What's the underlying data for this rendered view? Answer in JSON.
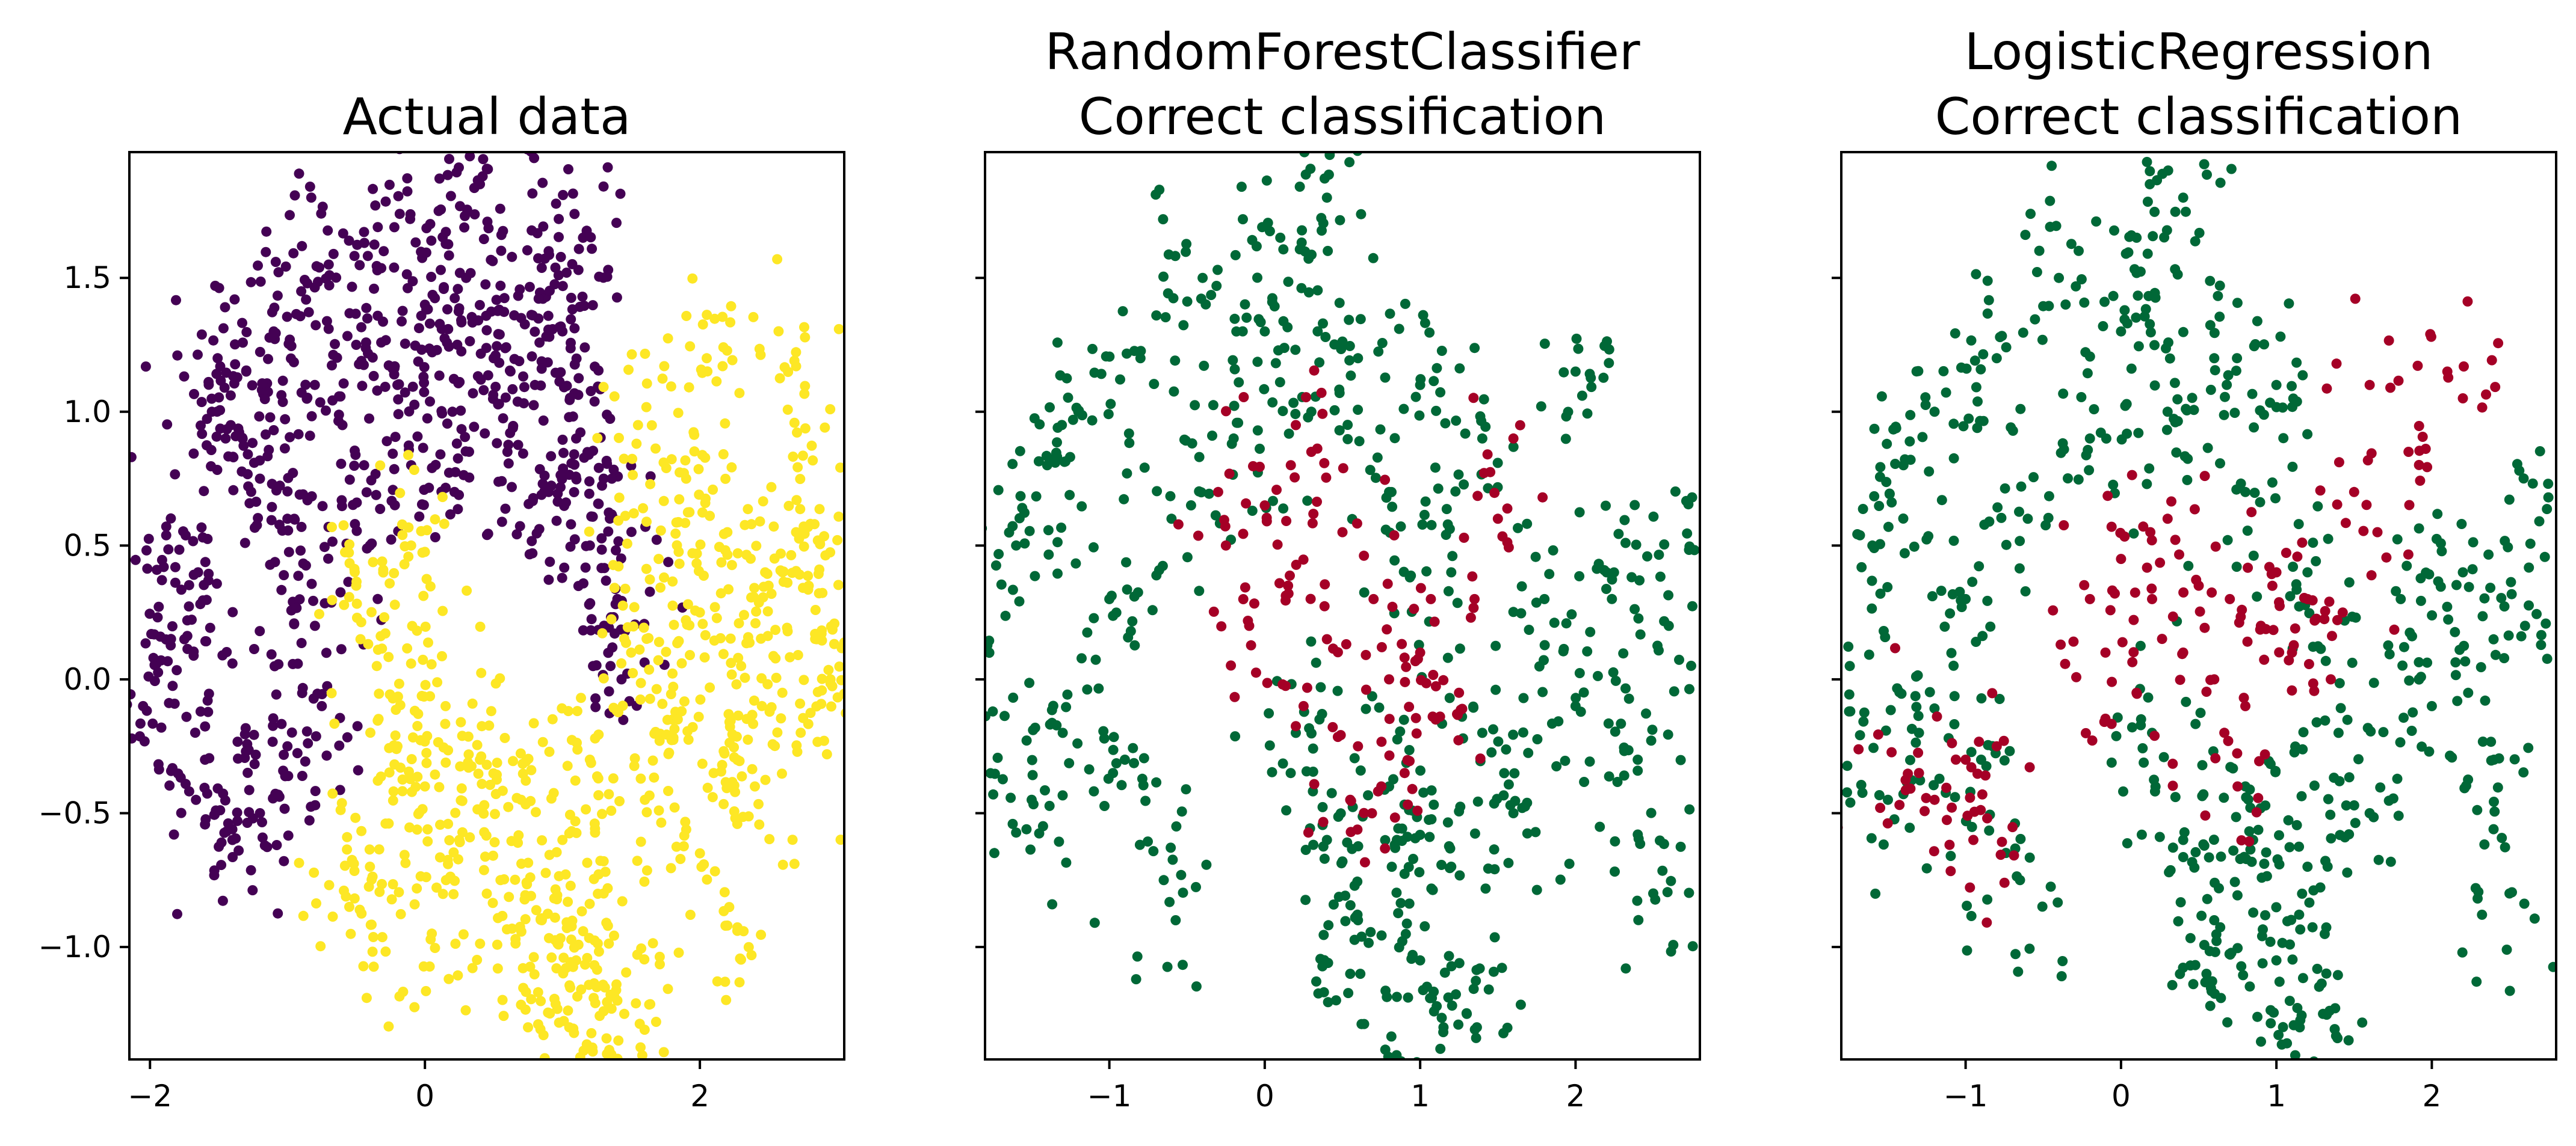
{
  "chart_data": [
    {
      "type": "scatter",
      "title": "Actual data",
      "xlabel": "",
      "ylabel": "",
      "xlim": [
        -2.15,
        3.05
      ],
      "ylim": [
        -1.42,
        1.97
      ],
      "x_ticks": [
        -2,
        0,
        2
      ],
      "x_tick_labels": [
        "−2",
        "0",
        "2"
      ],
      "y_ticks": [
        -1.0,
        -0.5,
        0.0,
        0.5,
        1.0,
        1.5
      ],
      "y_tick_labels": [
        "−1.0",
        "−0.5",
        "0.0",
        "0.5",
        "1.0",
        "1.5"
      ],
      "grid": false,
      "series": [
        {
          "color": "#440154",
          "distribution": "upper moon",
          "points": [
            [
              -1.55,
              1.0
            ],
            [
              -1.45,
              0.9
            ],
            [
              -1.3,
              1.15
            ],
            [
              -1.2,
              0.75
            ],
            [
              -1.1,
              1.3
            ],
            [
              -1.0,
              0.6
            ],
            [
              -0.9,
              1.45
            ],
            [
              -0.8,
              0.2
            ],
            [
              -0.7,
              1.55
            ],
            [
              -0.6,
              0.95
            ],
            [
              -0.5,
              1.25
            ],
            [
              -0.4,
              0.5
            ],
            [
              -0.3,
              1.6
            ],
            [
              -0.2,
              1.1
            ],
            [
              -0.1,
              0.8
            ],
            [
              0.0,
              1.4
            ],
            [
              0.1,
              1.75
            ],
            [
              0.2,
              1.0
            ],
            [
              0.3,
              1.5
            ],
            [
              0.4,
              1.85
            ],
            [
              0.5,
              1.2
            ],
            [
              0.6,
              0.85
            ],
            [
              0.7,
              1.35
            ],
            [
              0.8,
              1.1
            ],
            [
              0.9,
              0.7
            ],
            [
              1.0,
              1.3
            ],
            [
              1.1,
              0.9
            ],
            [
              1.2,
              0.5
            ],
            [
              1.3,
              0.75
            ],
            [
              1.4,
              0.3
            ],
            [
              -1.65,
              0.4
            ],
            [
              -1.75,
              0.15
            ],
            [
              -2.05,
              -0.1
            ],
            [
              -1.9,
              0.42
            ],
            [
              -1.6,
              -0.3
            ],
            [
              -1.4,
              -0.6
            ],
            [
              -1.2,
              -0.5
            ],
            [
              -1.0,
              -0.25
            ],
            [
              -0.75,
              -0.1
            ],
            [
              1.15,
              1.65
            ],
            [
              0.9,
              1.6
            ],
            [
              1.35,
              0.05
            ]
          ]
        },
        {
          "color": "#FDE725",
          "distribution": "lower moon",
          "points": [
            [
              -0.5,
              0.35
            ],
            [
              -0.35,
              0.05
            ],
            [
              -0.2,
              -0.25
            ],
            [
              -0.1,
              0.5
            ],
            [
              0.0,
              -0.4
            ],
            [
              0.15,
              -0.1
            ],
            [
              0.25,
              -0.6
            ],
            [
              0.4,
              -0.3
            ],
            [
              0.55,
              -0.75
            ],
            [
              0.7,
              -0.45
            ],
            [
              0.85,
              -0.9
            ],
            [
              1.0,
              -0.6
            ],
            [
              1.1,
              -1.05
            ],
            [
              1.2,
              -0.3
            ],
            [
              1.3,
              -0.8
            ],
            [
              1.4,
              -1.2
            ],
            [
              1.5,
              0.1
            ],
            [
              1.6,
              -0.45
            ],
            [
              1.7,
              0.45
            ],
            [
              1.8,
              -0.15
            ],
            [
              1.9,
              0.75
            ],
            [
              2.0,
              0.25
            ],
            [
              2.1,
              -0.35
            ],
            [
              2.2,
              0.55
            ],
            [
              2.3,
              0.05
            ],
            [
              2.4,
              -0.4
            ],
            [
              2.5,
              0.35
            ],
            [
              2.6,
              -0.05
            ],
            [
              2.7,
              0.55
            ],
            [
              2.85,
              0.15
            ],
            [
              3.0,
              0.52
            ],
            [
              2.05,
              1.2
            ],
            [
              2.7,
              1.17
            ],
            [
              1.55,
              0.95
            ],
            [
              -0.55,
              -0.85
            ],
            [
              -0.4,
              -0.7
            ],
            [
              0.05,
              -0.95
            ],
            [
              0.75,
              -1.3
            ],
            [
              1.05,
              -1.3
            ],
            [
              1.45,
              -1.25
            ],
            [
              2.2,
              -0.92
            ],
            [
              2.95,
              0.0
            ]
          ]
        }
      ]
    },
    {
      "type": "scatter",
      "title": "RandomForestClassifier\nCorrect classification",
      "title_lines": [
        "RandomForestClassifier",
        "Correct classification"
      ],
      "xlabel": "",
      "ylabel": "",
      "xlim": [
        -1.8,
        2.8
      ],
      "ylim": [
        -1.42,
        1.97
      ],
      "x_ticks": [
        -1,
        0,
        1,
        2
      ],
      "x_tick_labels": [
        "−1",
        "0",
        "1",
        "2"
      ],
      "y_ticks": [
        -1.0,
        -0.5,
        0.0,
        0.5,
        1.0,
        1.5
      ],
      "y_tick_labels": [
        "",
        "",
        "",
        "",
        "",
        ""
      ],
      "grid": false,
      "series": [
        {
          "color": "#006837",
          "distribution": "both moons",
          "points": [
            [
              -1.6,
              0.5
            ],
            [
              -1.4,
              0.8
            ],
            [
              -1.2,
              1.0
            ],
            [
              -1.0,
              0.3
            ],
            [
              -0.8,
              1.2
            ],
            [
              -0.6,
              0.6
            ],
            [
              -0.4,
              1.5
            ],
            [
              -0.2,
              0.9
            ],
            [
              0.0,
              1.3
            ],
            [
              0.1,
              1.65
            ],
            [
              0.3,
              1.0
            ],
            [
              0.4,
              1.8
            ],
            [
              0.6,
              1.2
            ],
            [
              0.8,
              0.7
            ],
            [
              1.0,
              1.1
            ],
            [
              1.2,
              0.4
            ],
            [
              -1.75,
              -0.12
            ],
            [
              -1.5,
              -0.45
            ],
            [
              -1.3,
              -0.2
            ],
            [
              -0.9,
              -0.3
            ],
            [
              0.2,
              -0.2
            ],
            [
              0.4,
              -0.6
            ],
            [
              0.6,
              -0.9
            ],
            [
              0.8,
              -0.4
            ],
            [
              1.0,
              -1.05
            ],
            [
              1.2,
              -0.7
            ],
            [
              1.4,
              -0.2
            ],
            [
              1.6,
              -0.5
            ],
            [
              1.8,
              0.3
            ],
            [
              2.0,
              -0.1
            ],
            [
              2.2,
              0.4
            ],
            [
              2.4,
              -0.3
            ],
            [
              2.6,
              0.2
            ],
            [
              2.75,
              0.68
            ],
            [
              1.3,
              -1.25
            ],
            [
              1.15,
              -1.3
            ],
            [
              0.55,
              -1.1
            ],
            [
              0.85,
              -0.6
            ],
            [
              2.0,
              1.15
            ],
            [
              1.4,
              0.9
            ],
            [
              -0.65,
              -0.75
            ],
            [
              2.5,
              -0.8
            ]
          ]
        },
        {
          "color": "#A50026",
          "distribution": "misclassified overlap",
          "points": [
            [
              -0.25,
              0.5
            ],
            [
              -0.1,
              0.2
            ],
            [
              0.0,
              0.65
            ],
            [
              0.15,
              0.35
            ],
            [
              0.25,
              -0.1
            ],
            [
              0.3,
              0.85
            ],
            [
              0.4,
              0.15
            ],
            [
              0.5,
              0.55
            ],
            [
              0.6,
              -0.25
            ],
            [
              0.7,
              0.3
            ],
            [
              0.8,
              0.0
            ],
            [
              0.9,
              -0.35
            ],
            [
              1.0,
              0.1
            ],
            [
              1.1,
              -0.15
            ],
            [
              1.25,
              -0.05
            ],
            [
              1.35,
              0.3
            ],
            [
              1.5,
              0.6
            ],
            [
              1.6,
              0.9
            ],
            [
              0.2,
              0.95
            ],
            [
              -0.3,
              0.7
            ],
            [
              0.55,
              -0.45
            ],
            [
              0.75,
              -0.4
            ]
          ]
        }
      ]
    },
    {
      "type": "scatter",
      "title": "LogisticRegression\nCorrect classification",
      "title_lines": [
        "LogisticRegression",
        "Correct classification"
      ],
      "xlabel": "",
      "ylabel": "",
      "xlim": [
        -1.8,
        2.8
      ],
      "ylim": [
        -1.42,
        1.97
      ],
      "x_ticks": [
        -1,
        0,
        1,
        2
      ],
      "x_tick_labels": [
        "−1",
        "0",
        "1",
        "2"
      ],
      "y_ticks": [
        -1.0,
        -0.5,
        0.0,
        0.5,
        1.0,
        1.5
      ],
      "y_tick_labels": [
        "",
        "",
        "",
        "",
        "",
        ""
      ],
      "grid": false,
      "series": [
        {
          "color": "#006837",
          "distribution": "both moons",
          "points": [
            [
              -1.6,
              0.5
            ],
            [
              -1.4,
              0.8
            ],
            [
              -1.2,
              1.0
            ],
            [
              -1.0,
              0.3
            ],
            [
              -0.8,
              1.2
            ],
            [
              -0.6,
              0.6
            ],
            [
              -0.4,
              1.5
            ],
            [
              -0.2,
              0.9
            ],
            [
              0.0,
              1.3
            ],
            [
              0.1,
              1.65
            ],
            [
              0.3,
              1.0
            ],
            [
              0.4,
              1.8
            ],
            [
              0.6,
              1.2
            ],
            [
              0.8,
              0.7
            ],
            [
              1.0,
              1.1
            ],
            [
              1.2,
              0.4
            ],
            [
              -1.75,
              -0.12
            ],
            [
              -1.5,
              -0.45
            ],
            [
              -1.3,
              -0.2
            ],
            [
              -0.9,
              -0.3
            ],
            [
              0.2,
              -0.2
            ],
            [
              0.4,
              -0.6
            ],
            [
              0.6,
              -0.9
            ],
            [
              0.8,
              -0.4
            ],
            [
              1.0,
              -1.05
            ],
            [
              1.2,
              -0.7
            ],
            [
              1.4,
              -0.2
            ],
            [
              1.6,
              -0.5
            ],
            [
              1.8,
              0.3
            ],
            [
              2.0,
              -0.1
            ],
            [
              2.2,
              0.4
            ],
            [
              2.4,
              -0.3
            ],
            [
              2.6,
              0.2
            ],
            [
              2.75,
              0.68
            ],
            [
              1.3,
              -1.25
            ],
            [
              1.15,
              -1.3
            ],
            [
              0.55,
              -1.1
            ],
            [
              0.85,
              -0.6
            ],
            [
              -0.65,
              -0.75
            ],
            [
              2.5,
              -0.8
            ]
          ]
        },
        {
          "color": "#A50026",
          "distribution": "misclassified band",
          "points": [
            [
              -0.2,
              0.3
            ],
            [
              -0.1,
              0.1
            ],
            [
              0.0,
              0.45
            ],
            [
              0.1,
              -0.05
            ],
            [
              0.2,
              0.3
            ],
            [
              0.3,
              0.6
            ],
            [
              0.4,
              0.1
            ],
            [
              0.5,
              0.35
            ],
            [
              0.6,
              0.0
            ],
            [
              0.7,
              0.3
            ],
            [
              0.8,
              -0.1
            ],
            [
              0.9,
              0.2
            ],
            [
              1.0,
              0.4
            ],
            [
              1.1,
              0.1
            ],
            [
              1.2,
              0.3
            ],
            [
              1.35,
              0.0
            ],
            [
              1.5,
              0.7
            ],
            [
              1.65,
              0.55
            ],
            [
              1.85,
              0.85
            ],
            [
              2.1,
              1.15
            ],
            [
              2.2,
              1.05
            ],
            [
              1.6,
              1.1
            ],
            [
              -1.0,
              -0.3
            ],
            [
              -0.8,
              -0.25
            ],
            [
              -1.3,
              -0.35
            ],
            [
              -1.2,
              -0.45
            ],
            [
              -1.55,
              -0.48
            ],
            [
              -0.95,
              -0.6
            ],
            [
              -0.75,
              -0.76
            ],
            [
              0.75,
              -0.4
            ]
          ]
        }
      ]
    }
  ]
}
